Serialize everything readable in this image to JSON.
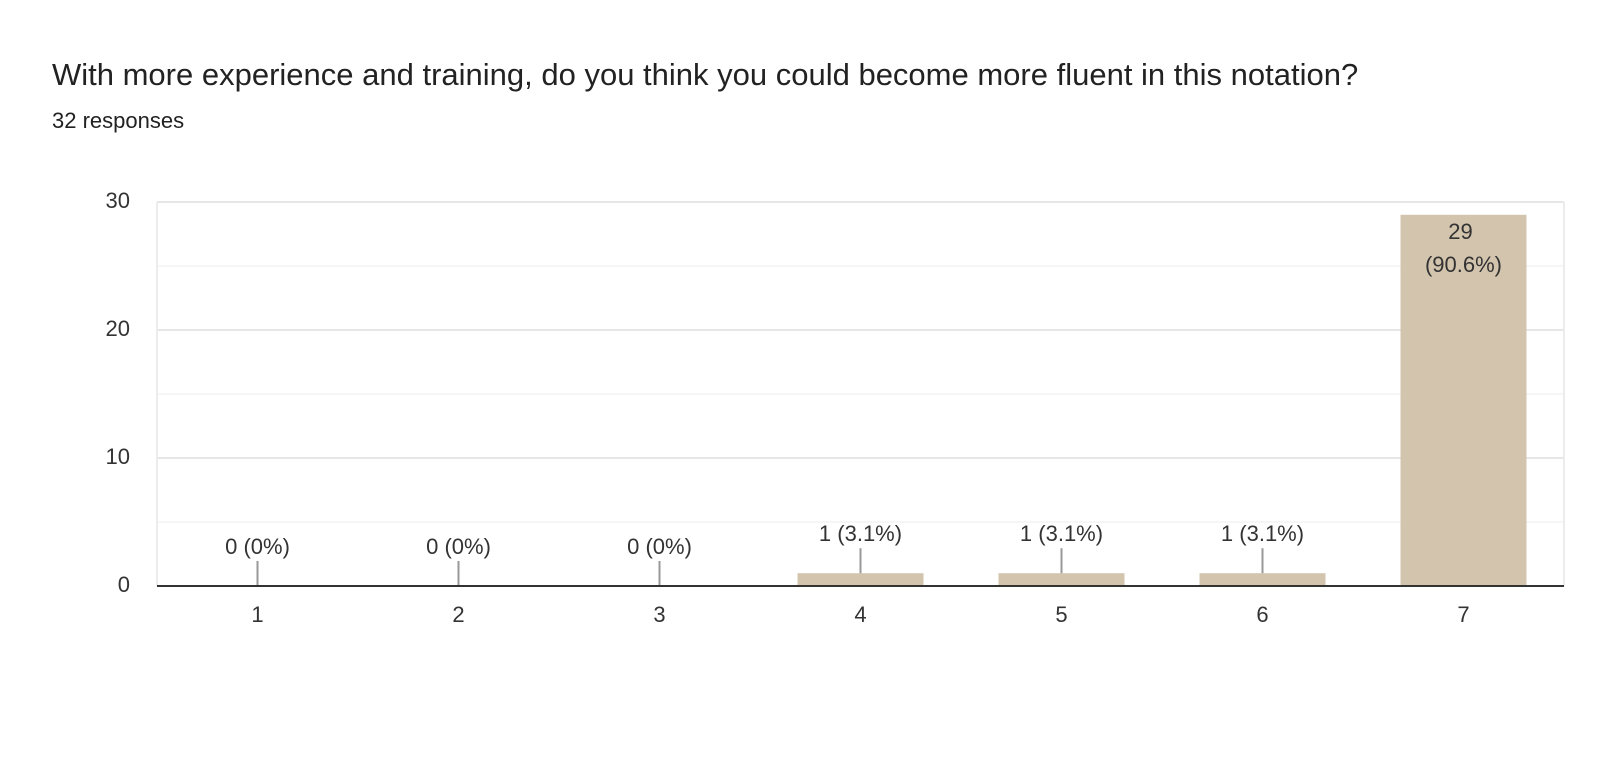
{
  "chart_data": {
    "type": "bar",
    "title": "With more experience and training, do you think you could become more fluent in this notation?",
    "subtitle": "32 responses",
    "categories": [
      "1",
      "2",
      "3",
      "4",
      "5",
      "6",
      "7"
    ],
    "values": [
      0,
      0,
      0,
      1,
      1,
      1,
      29
    ],
    "value_labels": [
      "0 (0%)",
      "0 (0%)",
      "0 (0%)",
      "1 (3.1%)",
      "1 (3.1%)",
      "1 (3.1%)",
      "29 (90.6%)"
    ],
    "color": "#d3c4ae",
    "ylim": [
      0,
      30
    ],
    "yticks": [
      0,
      10,
      20,
      30
    ],
    "minor_yticks": [
      5,
      15,
      25
    ],
    "grid": true
  }
}
